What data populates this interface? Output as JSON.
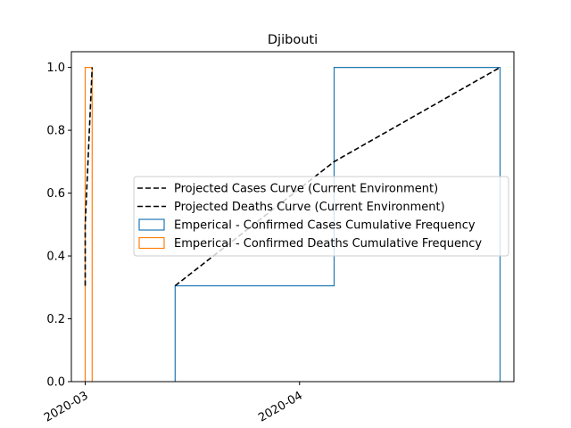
{
  "chart_data": {
    "type": "line",
    "title": "Djibouti",
    "xlabel": "",
    "ylabel": "",
    "x_ticks": [
      {
        "date": "2020-03-01",
        "label": "2020-03"
      },
      {
        "date": "2020-04-01",
        "label": "2020-04"
      }
    ],
    "y_ticks": [
      "0.0",
      "0.2",
      "0.4",
      "0.6",
      "0.8",
      "1.0"
    ],
    "xlim": [
      "2020-02-28",
      "2020-05-02"
    ],
    "ylim": [
      0,
      1.05
    ],
    "grid": false,
    "legend_position": "center-right",
    "series": [
      {
        "name": "Projected Cases Curve (Current Environment)",
        "kind": "line",
        "style": "dashed",
        "color": "#000000",
        "points": [
          {
            "x": "2020-03-14",
            "y": 0.305
          },
          {
            "x": "2020-04-06",
            "y": 0.7
          },
          {
            "x": "2020-04-30",
            "y": 1.0
          }
        ]
      },
      {
        "name": "Projected Deaths Curve (Current Environment)",
        "kind": "line",
        "style": "dashed",
        "color": "#000000",
        "points": [
          {
            "x": "2020-03-01",
            "y": 0.305
          },
          {
            "x": "2020-03-01",
            "y": 0.5
          },
          {
            "x": "2020-03-02",
            "y": 1.0
          }
        ]
      },
      {
        "name": "Emperical - Confirmed Cases Cumulative Frequency",
        "kind": "step-histogram",
        "color": "#1f77b4",
        "points": [
          {
            "x": "2020-03-14",
            "y": 0
          },
          {
            "x": "2020-03-14",
            "y": 0.305
          },
          {
            "x": "2020-04-06",
            "y": 0.305
          },
          {
            "x": "2020-04-06",
            "y": 1.0
          },
          {
            "x": "2020-04-30",
            "y": 1.0
          },
          {
            "x": "2020-04-30",
            "y": 0
          }
        ]
      },
      {
        "name": "Emperical - Confirmed Deaths Cumulative Frequency",
        "kind": "step-histogram",
        "color": "#ff7f0e",
        "points": [
          {
            "x": "2020-03-01",
            "y": 0
          },
          {
            "x": "2020-03-01",
            "y": 1.0
          },
          {
            "x": "2020-03-02",
            "y": 1.0
          },
          {
            "x": "2020-03-02",
            "y": 0
          }
        ]
      }
    ]
  }
}
